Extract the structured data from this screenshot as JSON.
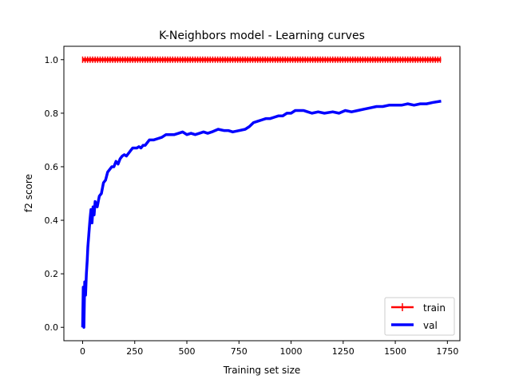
{
  "chart_data": {
    "type": "line",
    "title": "K-Neighbors model - Learning curves",
    "xlabel": "Training set size",
    "ylabel": "f2 score",
    "xlim": [
      -90,
      1810
    ],
    "ylim": [
      -0.05,
      1.05
    ],
    "xticks": [
      0,
      250,
      500,
      750,
      1000,
      1250,
      1500,
      1750
    ],
    "yticks": [
      0.0,
      0.2,
      0.4,
      0.6,
      0.8,
      1.0
    ],
    "grid": false,
    "legend_position": "lower-right",
    "series": [
      {
        "name": "train",
        "color": "#ff0000",
        "marker": "+",
        "x": [
          0,
          1720
        ],
        "y": [
          1.0,
          1.0
        ]
      },
      {
        "name": "val",
        "color": "#0000ff",
        "marker": "none",
        "x": [
          0,
          3,
          6,
          10,
          14,
          18,
          22,
          25,
          30,
          35,
          40,
          45,
          50,
          55,
          60,
          70,
          80,
          90,
          100,
          110,
          120,
          130,
          140,
          150,
          160,
          170,
          180,
          190,
          200,
          210,
          220,
          230,
          240,
          250,
          260,
          270,
          280,
          290,
          300,
          320,
          340,
          360,
          380,
          400,
          420,
          440,
          460,
          480,
          500,
          520,
          540,
          560,
          580,
          600,
          620,
          650,
          680,
          700,
          720,
          750,
          780,
          800,
          820,
          840,
          860,
          880,
          900,
          920,
          940,
          960,
          980,
          1000,
          1020,
          1040,
          1060,
          1080,
          1100,
          1130,
          1160,
          1200,
          1230,
          1260,
          1290,
          1320,
          1350,
          1380,
          1410,
          1440,
          1470,
          1500,
          1530,
          1560,
          1590,
          1620,
          1650,
          1680,
          1720
        ],
        "y": [
          0.0,
          0.15,
          0.0,
          0.17,
          0.12,
          0.2,
          0.25,
          0.3,
          0.35,
          0.4,
          0.44,
          0.39,
          0.45,
          0.42,
          0.47,
          0.45,
          0.49,
          0.5,
          0.54,
          0.55,
          0.58,
          0.59,
          0.6,
          0.6,
          0.62,
          0.61,
          0.63,
          0.64,
          0.645,
          0.64,
          0.65,
          0.66,
          0.67,
          0.67,
          0.67,
          0.675,
          0.67,
          0.68,
          0.68,
          0.7,
          0.7,
          0.705,
          0.71,
          0.72,
          0.72,
          0.72,
          0.725,
          0.73,
          0.72,
          0.725,
          0.72,
          0.725,
          0.73,
          0.725,
          0.73,
          0.74,
          0.735,
          0.735,
          0.73,
          0.735,
          0.74,
          0.75,
          0.765,
          0.77,
          0.775,
          0.78,
          0.78,
          0.785,
          0.79,
          0.79,
          0.8,
          0.8,
          0.81,
          0.81,
          0.81,
          0.805,
          0.8,
          0.805,
          0.8,
          0.805,
          0.8,
          0.81,
          0.805,
          0.81,
          0.815,
          0.82,
          0.825,
          0.825,
          0.83,
          0.83,
          0.83,
          0.835,
          0.83,
          0.835,
          0.835,
          0.84,
          0.845
        ]
      }
    ]
  }
}
